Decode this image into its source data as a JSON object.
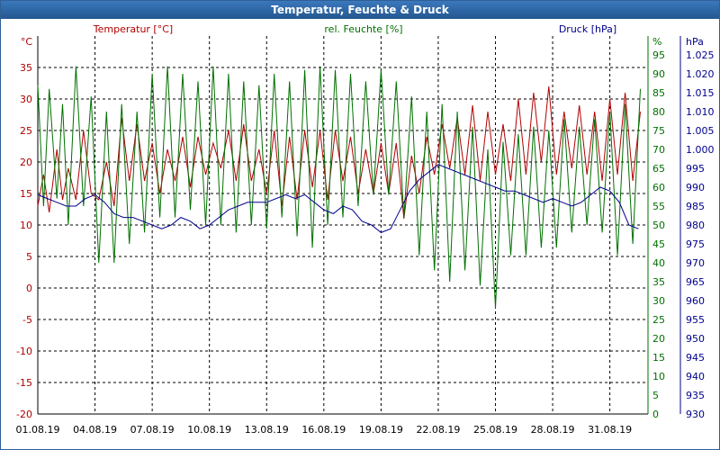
{
  "window": {
    "title": "Temperatur, Feuchte & Druck"
  },
  "colors": {
    "temperature": "#b00000",
    "humidity": "#007000",
    "pressure": "#00008c",
    "grid": "#000000",
    "frame": "#2f5f96"
  },
  "chart_data": {
    "type": "line",
    "title": "Temperatur, Feuchte & Druck",
    "grid": true,
    "x": {
      "tick_labels": [
        "01.08.19",
        "04.08.19",
        "07.08.19",
        "10.08.19",
        "13.08.19",
        "16.08.19",
        "19.08.19",
        "22.08.19",
        "25.08.19",
        "28.08.19",
        "31.08.19"
      ],
      "tick_days": [
        1,
        4,
        7,
        10,
        13,
        16,
        19,
        22,
        25,
        28,
        31
      ],
      "range_days": [
        1,
        33
      ]
    },
    "axes": {
      "temperature": {
        "unit": "°C",
        "label": "Temperatur [°C]",
        "range": [
          -20,
          40
        ],
        "ticks": [
          -20,
          -15,
          -10,
          -5,
          0,
          5,
          10,
          15,
          20,
          25,
          30,
          35
        ]
      },
      "humidity": {
        "unit": "%",
        "label": "rel. Feuchte [%]",
        "range": [
          0,
          100
        ],
        "ticks": [
          0,
          5,
          10,
          15,
          20,
          25,
          30,
          35,
          40,
          45,
          50,
          55,
          60,
          65,
          70,
          75,
          80,
          85,
          90,
          95
        ]
      },
      "pressure": {
        "unit": "hPa",
        "label": "Druck [hPa]",
        "range": [
          930,
          1030
        ],
        "ticks": [
          "930",
          "935",
          "940",
          "945",
          "950",
          "955",
          "960",
          "965",
          "970",
          "975",
          "980",
          "985",
          "990",
          "995",
          "1.000",
          "1.005",
          "1.010",
          "1.015",
          "1.020",
          "1.025"
        ]
      }
    },
    "series": [
      {
        "name": "Temperatur [°C]",
        "axis": "temperature",
        "points": [
          [
            1,
            13
          ],
          [
            1.3,
            18
          ],
          [
            1.6,
            12
          ],
          [
            2,
            22
          ],
          [
            2.3,
            14
          ],
          [
            2.6,
            19
          ],
          [
            3,
            14
          ],
          [
            3.4,
            25
          ],
          [
            3.8,
            15
          ],
          [
            4.2,
            14
          ],
          [
            4.6,
            20
          ],
          [
            5,
            13
          ],
          [
            5.4,
            27
          ],
          [
            5.8,
            17
          ],
          [
            6.2,
            26
          ],
          [
            6.6,
            17
          ],
          [
            7,
            23
          ],
          [
            7.4,
            15
          ],
          [
            7.8,
            22
          ],
          [
            8.2,
            17
          ],
          [
            8.6,
            24
          ],
          [
            9,
            16
          ],
          [
            9.4,
            24
          ],
          [
            9.8,
            18
          ],
          [
            10.2,
            23
          ],
          [
            10.6,
            19
          ],
          [
            11,
            25
          ],
          [
            11.4,
            17
          ],
          [
            11.8,
            26
          ],
          [
            12.2,
            17
          ],
          [
            12.6,
            22
          ],
          [
            13,
            15
          ],
          [
            13.4,
            25
          ],
          [
            13.8,
            13
          ],
          [
            14.2,
            24
          ],
          [
            14.6,
            14
          ],
          [
            15,
            25
          ],
          [
            15.4,
            16
          ],
          [
            15.8,
            25
          ],
          [
            16.2,
            14
          ],
          [
            16.6,
            25
          ],
          [
            17,
            17
          ],
          [
            17.4,
            24
          ],
          [
            17.8,
            15
          ],
          [
            18.2,
            22
          ],
          [
            18.6,
            15
          ],
          [
            19,
            23
          ],
          [
            19.4,
            15
          ],
          [
            19.8,
            23
          ],
          [
            20.2,
            11
          ],
          [
            20.6,
            21
          ],
          [
            21,
            15
          ],
          [
            21.4,
            24
          ],
          [
            21.8,
            18
          ],
          [
            22.2,
            26
          ],
          [
            22.6,
            19
          ],
          [
            23,
            27
          ],
          [
            23.4,
            18
          ],
          [
            23.8,
            29
          ],
          [
            24.2,
            17
          ],
          [
            24.6,
            28
          ],
          [
            25,
            18
          ],
          [
            25.4,
            26
          ],
          [
            25.8,
            17
          ],
          [
            26.2,
            30
          ],
          [
            26.6,
            18
          ],
          [
            27,
            31
          ],
          [
            27.4,
            20
          ],
          [
            27.8,
            32
          ],
          [
            28.2,
            18
          ],
          [
            28.6,
            28
          ],
          [
            29,
            19
          ],
          [
            29.4,
            29
          ],
          [
            29.8,
            18
          ],
          [
            30.2,
            28
          ],
          [
            30.6,
            17
          ],
          [
            31,
            30
          ],
          [
            31.4,
            18
          ],
          [
            31.8,
            31
          ],
          [
            32.2,
            17
          ],
          [
            32.6,
            28
          ]
        ]
      },
      {
        "name": "rel. Feuchte [%]",
        "axis": "humidity",
        "points": [
          [
            1,
            87
          ],
          [
            1.3,
            55
          ],
          [
            1.6,
            86
          ],
          [
            2,
            57
          ],
          [
            2.3,
            82
          ],
          [
            2.6,
            50
          ],
          [
            3,
            92
          ],
          [
            3.4,
            55
          ],
          [
            3.8,
            84
          ],
          [
            4.2,
            40
          ],
          [
            4.6,
            80
          ],
          [
            5,
            40
          ],
          [
            5.4,
            82
          ],
          [
            5.8,
            45
          ],
          [
            6.2,
            80
          ],
          [
            6.6,
            48
          ],
          [
            7,
            90
          ],
          [
            7.4,
            52
          ],
          [
            7.8,
            92
          ],
          [
            8.2,
            52
          ],
          [
            8.6,
            90
          ],
          [
            9,
            54
          ],
          [
            9.4,
            88
          ],
          [
            9.8,
            50
          ],
          [
            10.2,
            92
          ],
          [
            10.6,
            50
          ],
          [
            11,
            90
          ],
          [
            11.4,
            48
          ],
          [
            11.8,
            88
          ],
          [
            12.2,
            50
          ],
          [
            12.6,
            87
          ],
          [
            13,
            49
          ],
          [
            13.4,
            90
          ],
          [
            13.8,
            52
          ],
          [
            14.2,
            88
          ],
          [
            14.6,
            47
          ],
          [
            15,
            91
          ],
          [
            15.4,
            44
          ],
          [
            15.8,
            92
          ],
          [
            16.2,
            50
          ],
          [
            16.6,
            91
          ],
          [
            17,
            52
          ],
          [
            17.4,
            90
          ],
          [
            17.8,
            55
          ],
          [
            18.2,
            88
          ],
          [
            18.6,
            58
          ],
          [
            19,
            91
          ],
          [
            19.4,
            58
          ],
          [
            19.8,
            88
          ],
          [
            20.2,
            52
          ],
          [
            20.6,
            84
          ],
          [
            21,
            42
          ],
          [
            21.4,
            80
          ],
          [
            21.8,
            38
          ],
          [
            22.2,
            82
          ],
          [
            22.6,
            35
          ],
          [
            23,
            80
          ],
          [
            23.4,
            38
          ],
          [
            23.8,
            76
          ],
          [
            24.2,
            34
          ],
          [
            24.6,
            70
          ],
          [
            25,
            28
          ],
          [
            25.4,
            72
          ],
          [
            25.8,
            42
          ],
          [
            26.2,
            74
          ],
          [
            26.6,
            42
          ],
          [
            27,
            76
          ],
          [
            27.4,
            44
          ],
          [
            27.8,
            75
          ],
          [
            28.2,
            44
          ],
          [
            28.6,
            78
          ],
          [
            29,
            48
          ],
          [
            29.4,
            76
          ],
          [
            29.8,
            50
          ],
          [
            30.2,
            78
          ],
          [
            30.6,
            48
          ],
          [
            31,
            80
          ],
          [
            31.4,
            42
          ],
          [
            31.8,
            82
          ],
          [
            32.2,
            45
          ],
          [
            32.6,
            86
          ]
        ]
      },
      {
        "name": "Druck [hPa]",
        "axis": "pressure",
        "points": [
          [
            1,
            988
          ],
          [
            1.5,
            987
          ],
          [
            2,
            986
          ],
          [
            2.5,
            985
          ],
          [
            3,
            985
          ],
          [
            3.5,
            987
          ],
          [
            4,
            988
          ],
          [
            4.5,
            986
          ],
          [
            5,
            983
          ],
          [
            5.5,
            982
          ],
          [
            6,
            982
          ],
          [
            6.5,
            981
          ],
          [
            7,
            980
          ],
          [
            7.5,
            979
          ],
          [
            8,
            980
          ],
          [
            8.5,
            982
          ],
          [
            9,
            981
          ],
          [
            9.5,
            979
          ],
          [
            10,
            980
          ],
          [
            10.5,
            982
          ],
          [
            11,
            984
          ],
          [
            11.5,
            985
          ],
          [
            12,
            986
          ],
          [
            12.5,
            986
          ],
          [
            13,
            986
          ],
          [
            13.5,
            987
          ],
          [
            14,
            988
          ],
          [
            14.5,
            987
          ],
          [
            15,
            988
          ],
          [
            15.5,
            986
          ],
          [
            16,
            984
          ],
          [
            16.5,
            983
          ],
          [
            17,
            985
          ],
          [
            17.5,
            984
          ],
          [
            18,
            981
          ],
          [
            18.5,
            980
          ],
          [
            19,
            978
          ],
          [
            19.5,
            979
          ],
          [
            20,
            984
          ],
          [
            20.5,
            989
          ],
          [
            21,
            992
          ],
          [
            21.5,
            994
          ],
          [
            22,
            996
          ],
          [
            22.5,
            995
          ],
          [
            23,
            994
          ],
          [
            23.5,
            993
          ],
          [
            24,
            992
          ],
          [
            24.5,
            991
          ],
          [
            25,
            990
          ],
          [
            25.5,
            989
          ],
          [
            26,
            989
          ],
          [
            26.5,
            988
          ],
          [
            27,
            987
          ],
          [
            27.5,
            986
          ],
          [
            28,
            987
          ],
          [
            28.5,
            986
          ],
          [
            29,
            985
          ],
          [
            29.5,
            986
          ],
          [
            30,
            988
          ],
          [
            30.5,
            990
          ],
          [
            31,
            989
          ],
          [
            31.5,
            986
          ],
          [
            32,
            980
          ],
          [
            32.5,
            979
          ]
        ]
      }
    ]
  }
}
